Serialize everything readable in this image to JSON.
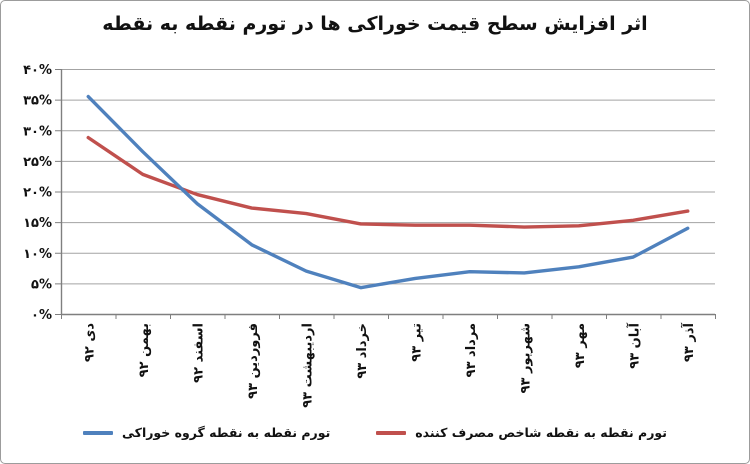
{
  "chart_data": {
    "type": "line",
    "title": "اثر افزایش سطح قیمت خوراکی ها در تورم نقطه به نقطه",
    "categories": [
      "دی ۹۲",
      "بهمن ۹۲",
      "اسفند ۹۲",
      "فروردین ۹۳",
      "اردیبهشت ۹۳",
      "خرداد ۹۳",
      "تیر ۹۳",
      "مرداد ۹۳",
      "شهریور ۹۳",
      "مهر ۹۳",
      "آبان ۹۳",
      "آذر ۹۳"
    ],
    "series": [
      {
        "key": "cpi",
        "name": "تورم نقطه به نقطه شاخص مصرف کننده",
        "color": "#C0504D",
        "values": [
          28.8,
          22.8,
          19.5,
          17.3,
          16.4,
          14.7,
          14.5,
          14.5,
          14.2,
          14.4,
          15.3,
          16.8
        ]
      },
      {
        "key": "food",
        "name": "تورم نقطه به نقطه گروه خوراکی",
        "color": "#4F81BD",
        "values": [
          35.5,
          26.5,
          18.0,
          11.3,
          7.0,
          4.3,
          5.8,
          6.9,
          6.7,
          7.7,
          9.3,
          14.0
        ]
      }
    ],
    "ylim": [
      0,
      40
    ],
    "y_tick_step": 5,
    "y_tick_labels": [
      "۰%",
      "۵%",
      "۱۰%",
      "۱۵%",
      "۲۰%",
      "۲۵%",
      "۳۰%",
      "۳۵%",
      "۴۰%"
    ],
    "grid": true,
    "x_labels_rotated": true,
    "legend_position": "bottom"
  },
  "colors": {
    "grid": "#a3a3a3",
    "axis": "#7f7f7f",
    "text": "#111111",
    "frame_border": "#9c9c9c"
  }
}
